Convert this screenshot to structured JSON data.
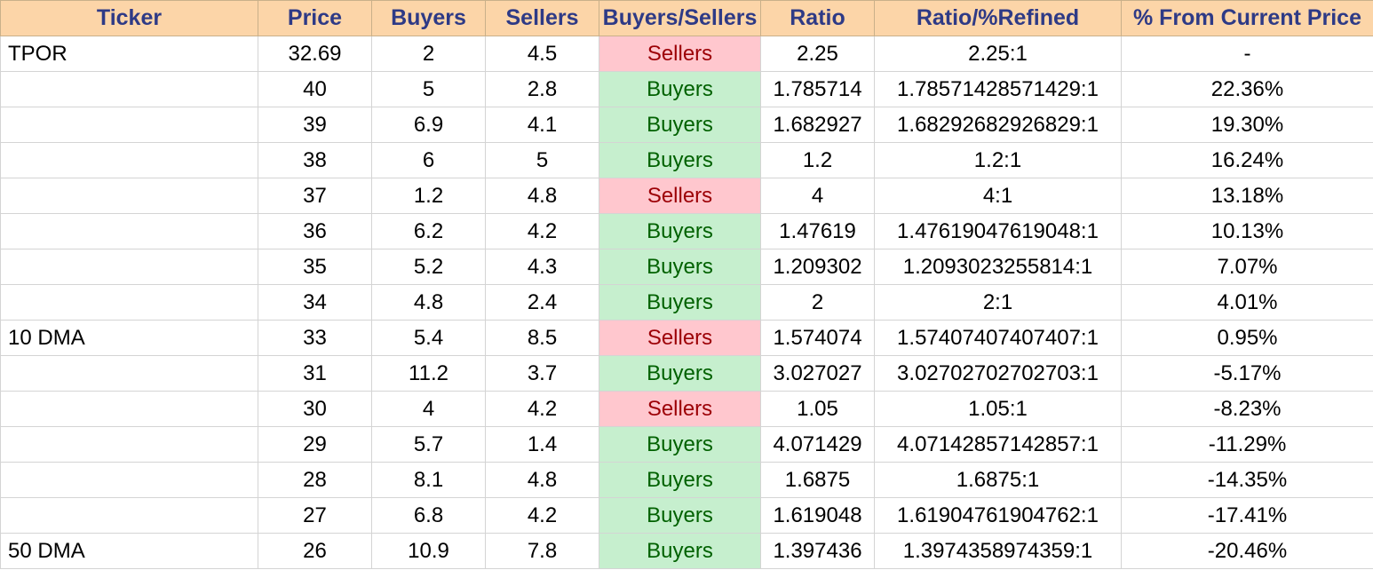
{
  "colors": {
    "header_bg": "#fcd5a8",
    "header_text": "#2e3a86",
    "buyers_bg": "#c6efce",
    "buyers_text": "#006100",
    "sellers_bg": "#ffc7ce",
    "sellers_text": "#9c0006"
  },
  "headers": [
    "Ticker",
    "Price",
    "Buyers",
    "Sellers",
    "Buyers/Sellers",
    "Ratio",
    "Ratio/%Refined",
    "% From Current Price"
  ],
  "rows": [
    {
      "ticker": "TPOR",
      "price": "32.69",
      "buyers": "2",
      "sellers": "4.5",
      "signal": "Sellers",
      "ratio": "2.25",
      "refined": "2.25:1",
      "pct": "-"
    },
    {
      "ticker": "",
      "price": "40",
      "buyers": "5",
      "sellers": "2.8",
      "signal": "Buyers",
      "ratio": "1.785714",
      "refined": "1.78571428571429:1",
      "pct": "22.36%"
    },
    {
      "ticker": "",
      "price": "39",
      "buyers": "6.9",
      "sellers": "4.1",
      "signal": "Buyers",
      "ratio": "1.682927",
      "refined": "1.68292682926829:1",
      "pct": "19.30%"
    },
    {
      "ticker": "",
      "price": "38",
      "buyers": "6",
      "sellers": "5",
      "signal": "Buyers",
      "ratio": "1.2",
      "refined": "1.2:1",
      "pct": "16.24%"
    },
    {
      "ticker": "",
      "price": "37",
      "buyers": "1.2",
      "sellers": "4.8",
      "signal": "Sellers",
      "ratio": "4",
      "refined": "4:1",
      "pct": "13.18%"
    },
    {
      "ticker": "",
      "price": "36",
      "buyers": "6.2",
      "sellers": "4.2",
      "signal": "Buyers",
      "ratio": "1.47619",
      "refined": "1.47619047619048:1",
      "pct": "10.13%"
    },
    {
      "ticker": "",
      "price": "35",
      "buyers": "5.2",
      "sellers": "4.3",
      "signal": "Buyers",
      "ratio": "1.209302",
      "refined": "1.2093023255814:1",
      "pct": "7.07%"
    },
    {
      "ticker": "",
      "price": "34",
      "buyers": "4.8",
      "sellers": "2.4",
      "signal": "Buyers",
      "ratio": "2",
      "refined": "2:1",
      "pct": "4.01%"
    },
    {
      "ticker": "10 DMA",
      "price": "33",
      "buyers": "5.4",
      "sellers": "8.5",
      "signal": "Sellers",
      "ratio": "1.574074",
      "refined": "1.57407407407407:1",
      "pct": "0.95%"
    },
    {
      "ticker": "",
      "price": "31",
      "buyers": "11.2",
      "sellers": "3.7",
      "signal": "Buyers",
      "ratio": "3.027027",
      "refined": "3.02702702702703:1",
      "pct": "-5.17%"
    },
    {
      "ticker": "",
      "price": "30",
      "buyers": "4",
      "sellers": "4.2",
      "signal": "Sellers",
      "ratio": "1.05",
      "refined": "1.05:1",
      "pct": "-8.23%"
    },
    {
      "ticker": "",
      "price": "29",
      "buyers": "5.7",
      "sellers": "1.4",
      "signal": "Buyers",
      "ratio": "4.071429",
      "refined": "4.07142857142857:1",
      "pct": "-11.29%"
    },
    {
      "ticker": "",
      "price": "28",
      "buyers": "8.1",
      "sellers": "4.8",
      "signal": "Buyers",
      "ratio": "1.6875",
      "refined": "1.6875:1",
      "pct": "-14.35%"
    },
    {
      "ticker": "",
      "price": "27",
      "buyers": "6.8",
      "sellers": "4.2",
      "signal": "Buyers",
      "ratio": "1.619048",
      "refined": "1.61904761904762:1",
      "pct": "-17.41%"
    },
    {
      "ticker": "50 DMA",
      "price": "26",
      "buyers": "10.9",
      "sellers": "7.8",
      "signal": "Buyers",
      "ratio": "1.397436",
      "refined": "1.3974358974359:1",
      "pct": "-20.46%"
    }
  ]
}
